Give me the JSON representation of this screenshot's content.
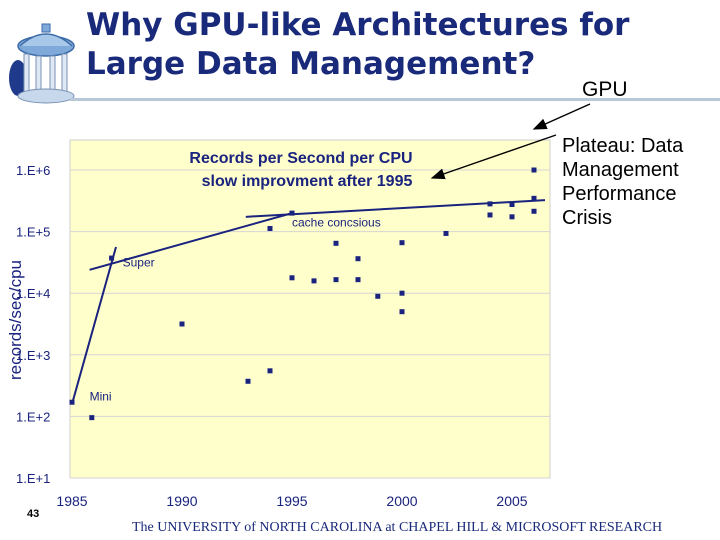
{
  "slide": {
    "title_line1": "Why GPU-like Architectures for",
    "title_line2": "Large Data Management?",
    "gpu_label": "GPU",
    "plateau_lines": [
      "Plateau: Data",
      "Management",
      "Performance",
      "Crisis"
    ],
    "page_number": "43",
    "footer": "The UNIVERSITY of NORTH CAROLINA at CHAPEL HILL & MICROSOFT RESEARCH"
  },
  "colors": {
    "title": "#1a2a7a",
    "plot_bg": "#ffffcc",
    "points": "#1a237e",
    "trend": "#1a237e",
    "rule": "#b9c8d9"
  },
  "chart_data": {
    "type": "scatter",
    "title_line1": "Records per Second per CPU",
    "title_line2": "slow improvment after 1995",
    "xlabel": "",
    "ylabel": "records/sec/cpu",
    "y_scale": "log10",
    "xlim": [
      1985,
      2006.5
    ],
    "ylim_log10": [
      1,
      6
    ],
    "x_ticks": [
      1985,
      1990,
      1995,
      2000,
      2005
    ],
    "y_ticks": [
      {
        "exp": 1,
        "label": "1.E+1"
      },
      {
        "exp": 2,
        "label": "1.E+2"
      },
      {
        "exp": 3,
        "label": "1.E+3"
      },
      {
        "exp": 4,
        "label": "1.E+4"
      },
      {
        "exp": 5,
        "label": "1.E+5"
      },
      {
        "exp": 6,
        "label": "1.E+6"
      }
    ],
    "grid": "horizontal",
    "points": [
      {
        "year": 1985.0,
        "log10": 2.23
      },
      {
        "year": 1985.9,
        "log10": 1.98
      },
      {
        "year": 1986.8,
        "log10": 4.57
      },
      {
        "year": 1990.0,
        "log10": 3.5
      },
      {
        "year": 1993.0,
        "log10": 2.57
      },
      {
        "year": 1994.0,
        "log10": 2.74
      },
      {
        "year": 1994.0,
        "log10": 5.05
      },
      {
        "year": 1995.0,
        "log10": 4.25
      },
      {
        "year": 1995.0,
        "log10": 5.3
      },
      {
        "year": 1996.0,
        "log10": 4.2
      },
      {
        "year": 1997.0,
        "log10": 4.22
      },
      {
        "year": 1997.0,
        "log10": 4.81
      },
      {
        "year": 1998.0,
        "log10": 4.22
      },
      {
        "year": 1998.0,
        "log10": 4.56
      },
      {
        "year": 1998.9,
        "log10": 3.95
      },
      {
        "year": 2000.0,
        "log10": 4.0
      },
      {
        "year": 2000.0,
        "log10": 3.7
      },
      {
        "year": 2000.0,
        "log10": 4.82
      },
      {
        "year": 2002.0,
        "log10": 4.97
      },
      {
        "year": 2004.0,
        "log10": 5.27
      },
      {
        "year": 2004.0,
        "log10": 5.45
      },
      {
        "year": 2005.0,
        "log10": 5.24
      },
      {
        "year": 2005.0,
        "log10": 5.44
      },
      {
        "year": 2006.0,
        "log10": 5.33
      },
      {
        "year": 2006.0,
        "log10": 5.54
      },
      {
        "year": 2006.0,
        "log10": 6.0
      }
    ],
    "trend_lines": [
      {
        "from": {
          "year": 1985.0,
          "log10": 2.2
        },
        "to": {
          "year": 1987.0,
          "log10": 4.75
        }
      },
      {
        "from": {
          "year": 1985.8,
          "log10": 4.38
        },
        "to": {
          "year": 1995.0,
          "log10": 5.3
        }
      },
      {
        "from": {
          "year": 1992.9,
          "log10": 5.24
        },
        "to": {
          "year": 2006.5,
          "log10": 5.51
        }
      }
    ],
    "annotations": [
      {
        "text": "cache concsious",
        "year": 1995.0,
        "log10": 5.08
      },
      {
        "text": "Super",
        "year": 1987.3,
        "log10": 4.43
      },
      {
        "text": "Mini",
        "year": 1985.8,
        "log10": 2.26
      }
    ]
  }
}
